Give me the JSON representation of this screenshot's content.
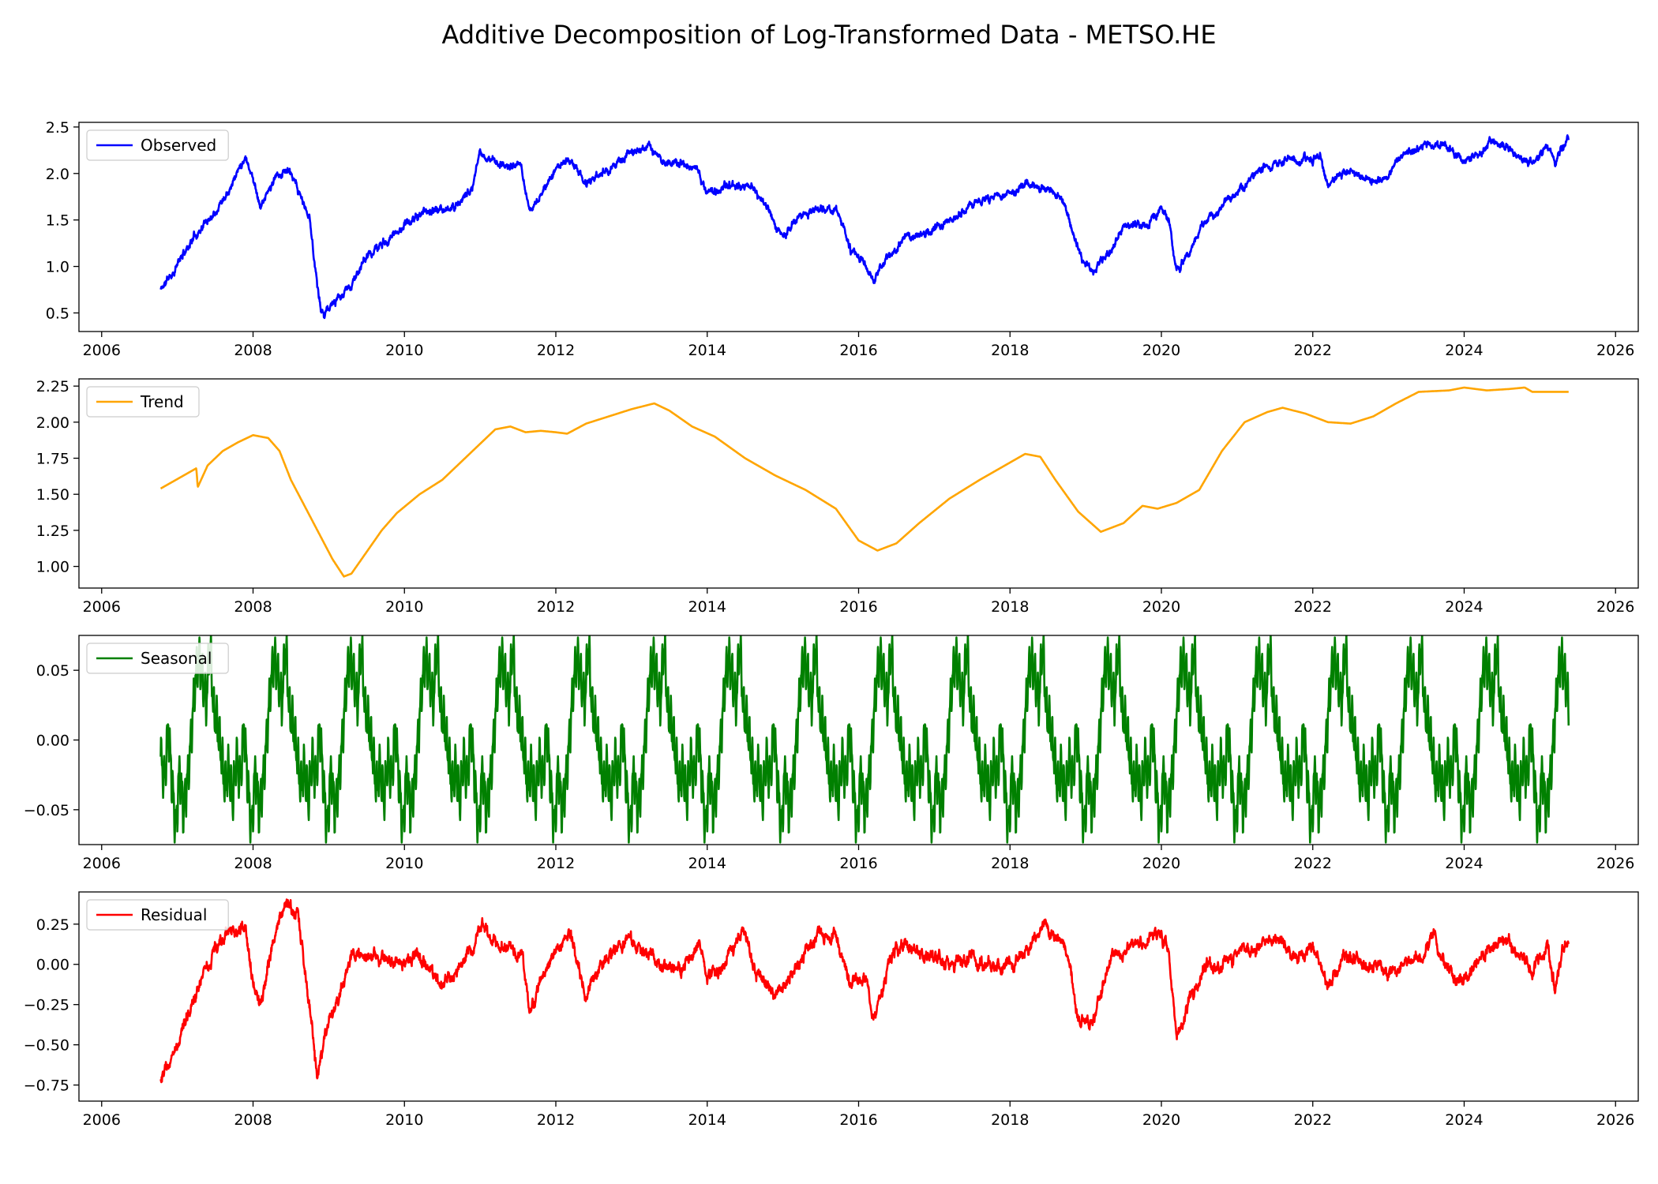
{
  "chart_data": {
    "title": "Additive Decomposition of Log-Transformed Data - METSO.HE",
    "type": "line",
    "x_axis": {
      "range": [
        2005.7,
        2026.3
      ],
      "ticks": [
        2006,
        2008,
        2010,
        2012,
        2014,
        2016,
        2018,
        2020,
        2022,
        2024,
        2026
      ],
      "tick_labels": [
        "2006",
        "2008",
        "2010",
        "2012",
        "2014",
        "2016",
        "2018",
        "2020",
        "2022",
        "2024",
        "2026"
      ]
    },
    "panels": [
      {
        "legend": "Observed",
        "color": "#0000ff",
        "legend_position": "upper left",
        "grid": false,
        "ylim": [
          0.3,
          2.55
        ],
        "yticks": [
          0.5,
          1.0,
          1.5,
          2.0,
          2.5
        ],
        "ytick_labels": [
          "0.5",
          "1.0",
          "1.5",
          "2.0",
          "2.5"
        ],
        "noise": 0.05,
        "points": [
          [
            2006.78,
            0.75
          ],
          [
            2006.95,
            0.95
          ],
          [
            2007.2,
            1.3
          ],
          [
            2007.5,
            1.6
          ],
          [
            2007.75,
            1.95
          ],
          [
            2007.9,
            2.2
          ],
          [
            2008.0,
            1.95
          ],
          [
            2008.1,
            1.65
          ],
          [
            2008.3,
            1.95
          ],
          [
            2008.45,
            2.05
          ],
          [
            2008.6,
            1.8
          ],
          [
            2008.75,
            1.5
          ],
          [
            2008.82,
            1.0
          ],
          [
            2008.9,
            0.5
          ],
          [
            2009.0,
            0.55
          ],
          [
            2009.15,
            0.65
          ],
          [
            2009.3,
            0.8
          ],
          [
            2009.5,
            1.1
          ],
          [
            2009.8,
            1.3
          ],
          [
            2010.0,
            1.45
          ],
          [
            2010.3,
            1.6
          ],
          [
            2010.6,
            1.6
          ],
          [
            2010.9,
            1.85
          ],
          [
            2011.0,
            2.2
          ],
          [
            2011.3,
            2.1
          ],
          [
            2011.55,
            2.05
          ],
          [
            2011.65,
            1.6
          ],
          [
            2011.8,
            1.75
          ],
          [
            2012.0,
            2.05
          ],
          [
            2012.2,
            2.15
          ],
          [
            2012.4,
            1.9
          ],
          [
            2012.7,
            2.05
          ],
          [
            2013.0,
            2.2
          ],
          [
            2013.2,
            2.3
          ],
          [
            2013.4,
            2.15
          ],
          [
            2013.7,
            2.1
          ],
          [
            2013.85,
            2.05
          ],
          [
            2014.0,
            1.8
          ],
          [
            2014.3,
            1.85
          ],
          [
            2014.6,
            1.85
          ],
          [
            2014.8,
            1.6
          ],
          [
            2015.0,
            1.35
          ],
          [
            2015.2,
            1.5
          ],
          [
            2015.5,
            1.65
          ],
          [
            2015.75,
            1.55
          ],
          [
            2015.9,
            1.15
          ],
          [
            2016.1,
            1.05
          ],
          [
            2016.2,
            0.85
          ],
          [
            2016.4,
            1.1
          ],
          [
            2016.6,
            1.3
          ],
          [
            2016.9,
            1.35
          ],
          [
            2017.2,
            1.5
          ],
          [
            2017.5,
            1.65
          ],
          [
            2017.8,
            1.75
          ],
          [
            2018.0,
            1.8
          ],
          [
            2018.2,
            1.9
          ],
          [
            2018.5,
            1.8
          ],
          [
            2018.7,
            1.75
          ],
          [
            2018.8,
            1.45
          ],
          [
            2018.95,
            1.05
          ],
          [
            2019.1,
            0.95
          ],
          [
            2019.3,
            1.15
          ],
          [
            2019.5,
            1.45
          ],
          [
            2019.8,
            1.45
          ],
          [
            2020.0,
            1.6
          ],
          [
            2020.1,
            1.5
          ],
          [
            2020.2,
            0.95
          ],
          [
            2020.4,
            1.2
          ],
          [
            2020.6,
            1.5
          ],
          [
            2020.85,
            1.7
          ],
          [
            2021.0,
            1.8
          ],
          [
            2021.3,
            2.05
          ],
          [
            2021.7,
            2.15
          ],
          [
            2022.0,
            2.15
          ],
          [
            2022.1,
            2.2
          ],
          [
            2022.2,
            1.85
          ],
          [
            2022.4,
            2.0
          ],
          [
            2022.7,
            1.95
          ],
          [
            2022.9,
            1.9
          ],
          [
            2023.2,
            2.2
          ],
          [
            2023.5,
            2.3
          ],
          [
            2023.75,
            2.3
          ],
          [
            2024.0,
            2.15
          ],
          [
            2024.2,
            2.2
          ],
          [
            2024.35,
            2.35
          ],
          [
            2024.5,
            2.3
          ],
          [
            2024.7,
            2.2
          ],
          [
            2024.9,
            2.1
          ],
          [
            2025.1,
            2.3
          ],
          [
            2025.2,
            2.1
          ],
          [
            2025.3,
            2.3
          ],
          [
            2025.38,
            2.35
          ]
        ]
      },
      {
        "legend": "Trend",
        "color": "#ffa500",
        "legend_position": "upper left",
        "grid": false,
        "ylim": [
          0.85,
          2.3
        ],
        "yticks": [
          1.0,
          1.25,
          1.5,
          1.75,
          2.0,
          2.25
        ],
        "ytick_labels": [
          "1.00",
          "1.25",
          "1.50",
          "1.75",
          "2.00",
          "2.25"
        ],
        "noise": 0,
        "points": [
          [
            2006.78,
            1.54
          ],
          [
            2007.25,
            1.68
          ],
          [
            2007.27,
            1.55
          ],
          [
            2007.4,
            1.7
          ],
          [
            2007.6,
            1.8
          ],
          [
            2007.8,
            1.86
          ],
          [
            2008.0,
            1.91
          ],
          [
            2008.2,
            1.89
          ],
          [
            2008.35,
            1.8
          ],
          [
            2008.5,
            1.6
          ],
          [
            2008.7,
            1.4
          ],
          [
            2008.9,
            1.2
          ],
          [
            2009.05,
            1.05
          ],
          [
            2009.2,
            0.93
          ],
          [
            2009.3,
            0.95
          ],
          [
            2009.5,
            1.1
          ],
          [
            2009.7,
            1.25
          ],
          [
            2009.9,
            1.37
          ],
          [
            2010.2,
            1.5
          ],
          [
            2010.5,
            1.6
          ],
          [
            2010.9,
            1.8
          ],
          [
            2011.2,
            1.95
          ],
          [
            2011.4,
            1.97
          ],
          [
            2011.6,
            1.93
          ],
          [
            2011.8,
            1.94
          ],
          [
            2012.0,
            1.93
          ],
          [
            2012.15,
            1.92
          ],
          [
            2012.4,
            1.99
          ],
          [
            2012.7,
            2.04
          ],
          [
            2013.0,
            2.09
          ],
          [
            2013.3,
            2.13
          ],
          [
            2013.5,
            2.08
          ],
          [
            2013.8,
            1.97
          ],
          [
            2014.1,
            1.9
          ],
          [
            2014.5,
            1.75
          ],
          [
            2014.9,
            1.63
          ],
          [
            2015.3,
            1.53
          ],
          [
            2015.7,
            1.4
          ],
          [
            2016.0,
            1.18
          ],
          [
            2016.25,
            1.11
          ],
          [
            2016.5,
            1.16
          ],
          [
            2016.8,
            1.3
          ],
          [
            2017.2,
            1.47
          ],
          [
            2017.6,
            1.6
          ],
          [
            2017.9,
            1.69
          ],
          [
            2018.2,
            1.78
          ],
          [
            2018.4,
            1.76
          ],
          [
            2018.6,
            1.6
          ],
          [
            2018.9,
            1.38
          ],
          [
            2019.2,
            1.24
          ],
          [
            2019.5,
            1.3
          ],
          [
            2019.75,
            1.42
          ],
          [
            2019.95,
            1.4
          ],
          [
            2020.2,
            1.44
          ],
          [
            2020.5,
            1.53
          ],
          [
            2020.8,
            1.8
          ],
          [
            2021.1,
            2.0
          ],
          [
            2021.4,
            2.07
          ],
          [
            2021.6,
            2.1
          ],
          [
            2021.9,
            2.06
          ],
          [
            2022.2,
            2.0
          ],
          [
            2022.5,
            1.99
          ],
          [
            2022.8,
            2.04
          ],
          [
            2023.1,
            2.13
          ],
          [
            2023.4,
            2.21
          ],
          [
            2023.8,
            2.22
          ],
          [
            2024.0,
            2.24
          ],
          [
            2024.3,
            2.22
          ],
          [
            2024.6,
            2.23
          ],
          [
            2024.8,
            2.24
          ],
          [
            2024.9,
            2.21
          ],
          [
            2025.38,
            2.21
          ]
        ]
      },
      {
        "legend": "Seasonal",
        "color": "#008000",
        "legend_position": "upper left",
        "grid": false,
        "ylim": [
          -0.075,
          0.075
        ],
        "yticks": [
          -0.05,
          0.0,
          0.05
        ],
        "ytick_labels": [
          "−0.05",
          "0.00",
          "0.05"
        ],
        "noise": 0,
        "period_start": 2006.78,
        "period_end": 2025.38,
        "one_period": [
          [
            0.0,
            -0.012
          ],
          [
            0.05,
            -0.03
          ],
          [
            0.1,
            0.01
          ],
          [
            0.15,
            -0.03
          ],
          [
            0.2,
            -0.065
          ],
          [
            0.25,
            -0.02
          ],
          [
            0.3,
            -0.05
          ],
          [
            0.35,
            -0.03
          ],
          [
            0.4,
            0.0
          ],
          [
            0.45,
            0.04
          ],
          [
            0.5,
            0.06
          ],
          [
            0.55,
            0.045
          ],
          [
            0.6,
            0.025
          ],
          [
            0.65,
            0.07
          ],
          [
            0.7,
            0.02
          ],
          [
            0.75,
            0.01
          ],
          [
            0.8,
            -0.01
          ],
          [
            0.85,
            -0.035
          ],
          [
            0.9,
            -0.02
          ],
          [
            0.95,
            -0.045
          ],
          [
            1.0,
            -0.012
          ]
        ]
      },
      {
        "legend": "Residual",
        "color": "#ff0000",
        "legend_position": "upper left",
        "grid": false,
        "ylim": [
          -0.85,
          0.45
        ],
        "yticks": [
          -0.75,
          -0.5,
          -0.25,
          0.0,
          0.25
        ],
        "ytick_labels": [
          "−0.75",
          "−0.50",
          "−0.25",
          "0.00",
          "0.25"
        ],
        "noise": 0.05,
        "points": [
          [
            2006.78,
            -0.75
          ],
          [
            2006.95,
            -0.55
          ],
          [
            2007.1,
            -0.35
          ],
          [
            2007.3,
            -0.1
          ],
          [
            2007.5,
            0.1
          ],
          [
            2007.7,
            0.2
          ],
          [
            2007.9,
            0.25
          ],
          [
            2008.0,
            -0.1
          ],
          [
            2008.1,
            -0.25
          ],
          [
            2008.3,
            0.2
          ],
          [
            2008.45,
            0.38
          ],
          [
            2008.6,
            0.3
          ],
          [
            2008.75,
            -0.3
          ],
          [
            2008.85,
            -0.7
          ],
          [
            2008.95,
            -0.45
          ],
          [
            2009.1,
            -0.25
          ],
          [
            2009.3,
            0.05
          ],
          [
            2009.6,
            0.05
          ],
          [
            2009.9,
            0.0
          ],
          [
            2010.2,
            0.05
          ],
          [
            2010.4,
            -0.1
          ],
          [
            2010.7,
            -0.05
          ],
          [
            2010.9,
            0.1
          ],
          [
            2011.0,
            0.25
          ],
          [
            2011.3,
            0.1
          ],
          [
            2011.55,
            0.05
          ],
          [
            2011.65,
            -0.3
          ],
          [
            2011.8,
            -0.1
          ],
          [
            2012.0,
            0.1
          ],
          [
            2012.2,
            0.2
          ],
          [
            2012.4,
            -0.2
          ],
          [
            2012.7,
            0.05
          ],
          [
            2013.0,
            0.15
          ],
          [
            2013.3,
            0.05
          ],
          [
            2013.6,
            -0.05
          ],
          [
            2013.9,
            0.1
          ],
          [
            2014.0,
            -0.1
          ],
          [
            2014.3,
            0.05
          ],
          [
            2014.5,
            0.2
          ],
          [
            2014.6,
            0.0
          ],
          [
            2014.9,
            -0.2
          ],
          [
            2015.2,
            0.0
          ],
          [
            2015.5,
            0.2
          ],
          [
            2015.7,
            0.15
          ],
          [
            2015.9,
            -0.15
          ],
          [
            2016.1,
            -0.05
          ],
          [
            2016.2,
            -0.35
          ],
          [
            2016.4,
            0.0
          ],
          [
            2016.6,
            0.15
          ],
          [
            2016.9,
            0.05
          ],
          [
            2017.2,
            0.0
          ],
          [
            2017.5,
            0.05
          ],
          [
            2017.8,
            0.0
          ],
          [
            2018.0,
            0.0
          ],
          [
            2018.2,
            0.05
          ],
          [
            2018.4,
            0.2
          ],
          [
            2018.6,
            0.2
          ],
          [
            2018.8,
            0.0
          ],
          [
            2018.9,
            -0.35
          ],
          [
            2019.1,
            -0.35
          ],
          [
            2019.3,
            0.0
          ],
          [
            2019.6,
            0.1
          ],
          [
            2019.9,
            0.2
          ],
          [
            2020.1,
            0.1
          ],
          [
            2020.2,
            -0.45
          ],
          [
            2020.4,
            -0.2
          ],
          [
            2020.6,
            0.0
          ],
          [
            2020.9,
            0.0
          ],
          [
            2021.2,
            0.1
          ],
          [
            2021.5,
            0.15
          ],
          [
            2021.8,
            0.05
          ],
          [
            2022.0,
            0.1
          ],
          [
            2022.2,
            -0.15
          ],
          [
            2022.4,
            0.05
          ],
          [
            2022.7,
            0.0
          ],
          [
            2023.0,
            -0.05
          ],
          [
            2023.3,
            0.0
          ],
          [
            2023.6,
            0.15
          ],
          [
            2023.9,
            -0.1
          ],
          [
            2024.1,
            -0.05
          ],
          [
            2024.3,
            0.1
          ],
          [
            2024.5,
            0.15
          ],
          [
            2024.7,
            0.05
          ],
          [
            2024.9,
            -0.05
          ],
          [
            2025.1,
            0.15
          ],
          [
            2025.2,
            -0.15
          ],
          [
            2025.3,
            0.1
          ],
          [
            2025.38,
            0.13
          ]
        ]
      }
    ]
  }
}
